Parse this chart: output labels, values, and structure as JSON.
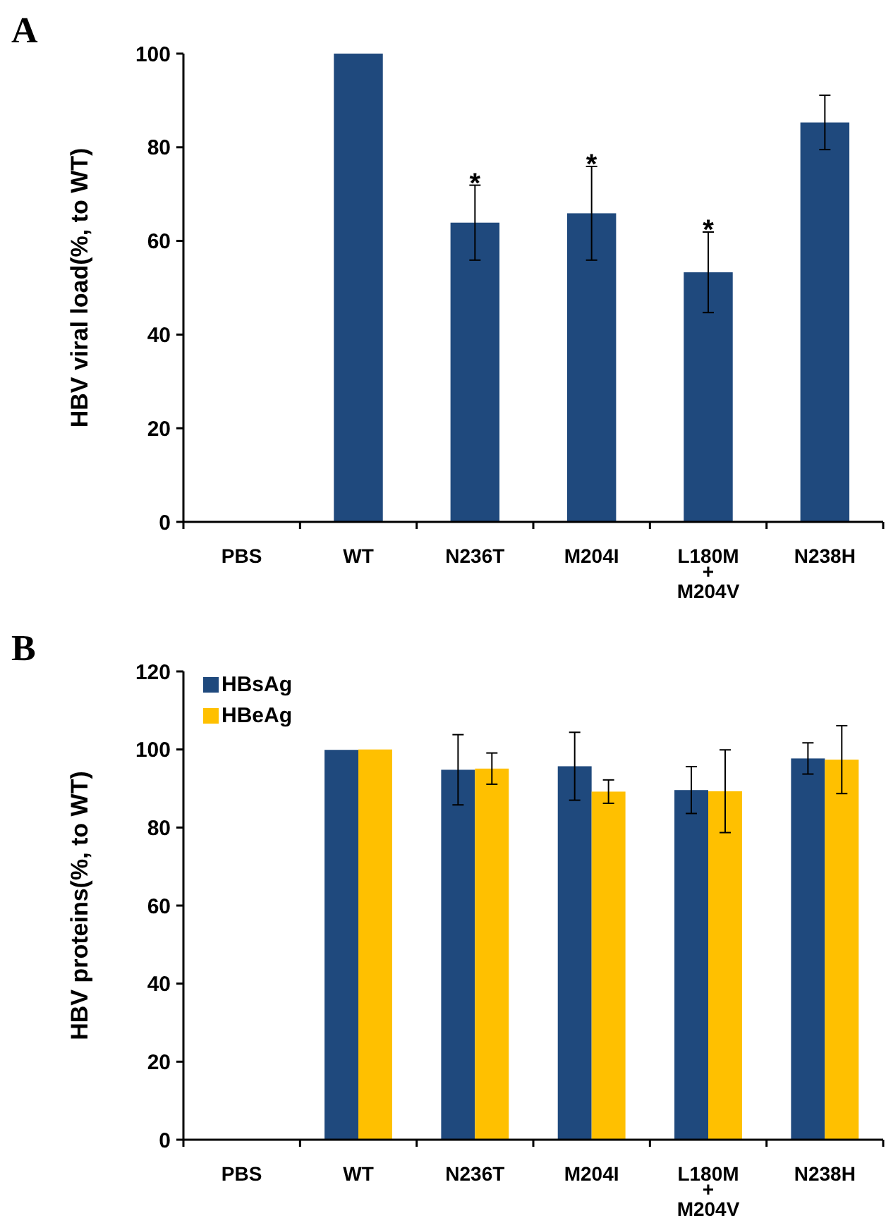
{
  "chart_data": [
    {
      "type": "bar",
      "title": "A",
      "ylabel": "HBV viral load(%, to WT)",
      "categories": [
        "PBS",
        "WT",
        "N236T",
        "M204I",
        "L180M\n+\nM204V",
        "N238H"
      ],
      "series": [
        {
          "color": "#1f497d",
          "values": [
            0,
            100,
            63.9,
            65.9,
            53.3,
            85.3
          ],
          "errors": [
            null,
            null,
            8,
            10,
            8.6,
            5.8
          ]
        }
      ],
      "ylim": [
        0,
        100
      ],
      "yticks": [
        0,
        20,
        40,
        60,
        80,
        100
      ],
      "grid": false,
      "legend": false,
      "annotations": [
        {
          "text": "*",
          "x": "N236T",
          "y": 71.9
        },
        {
          "text": "*",
          "x": "M204I",
          "y": 75.9
        },
        {
          "text": "*",
          "x": "L180M\n+\nM204V",
          "y": 61.9
        }
      ]
    },
    {
      "type": "bar",
      "title": "B",
      "ylabel": "HBV proteins(%, to WT)",
      "categories": [
        "PBS",
        "WT",
        "N236T",
        "M204I",
        "L180M\n+\nM204V",
        "N238H"
      ],
      "series": [
        {
          "name": "HBsAg",
          "color": "#1f497d",
          "values": [
            0,
            99.9,
            94.8,
            95.7,
            89.6,
            97.7
          ],
          "errors": [
            null,
            null,
            9,
            8.7,
            6,
            4
          ]
        },
        {
          "name": "HBeAg",
          "color": "#ffc000",
          "values": [
            0,
            100,
            95.1,
            89.2,
            89.3,
            97.4
          ],
          "errors": [
            null,
            null,
            4,
            3,
            10.6,
            8.7
          ]
        }
      ],
      "ylim": [
        0,
        120
      ],
      "yticks": [
        0,
        20,
        40,
        60,
        80,
        100,
        120
      ],
      "grid": false,
      "legend": "top left"
    }
  ]
}
